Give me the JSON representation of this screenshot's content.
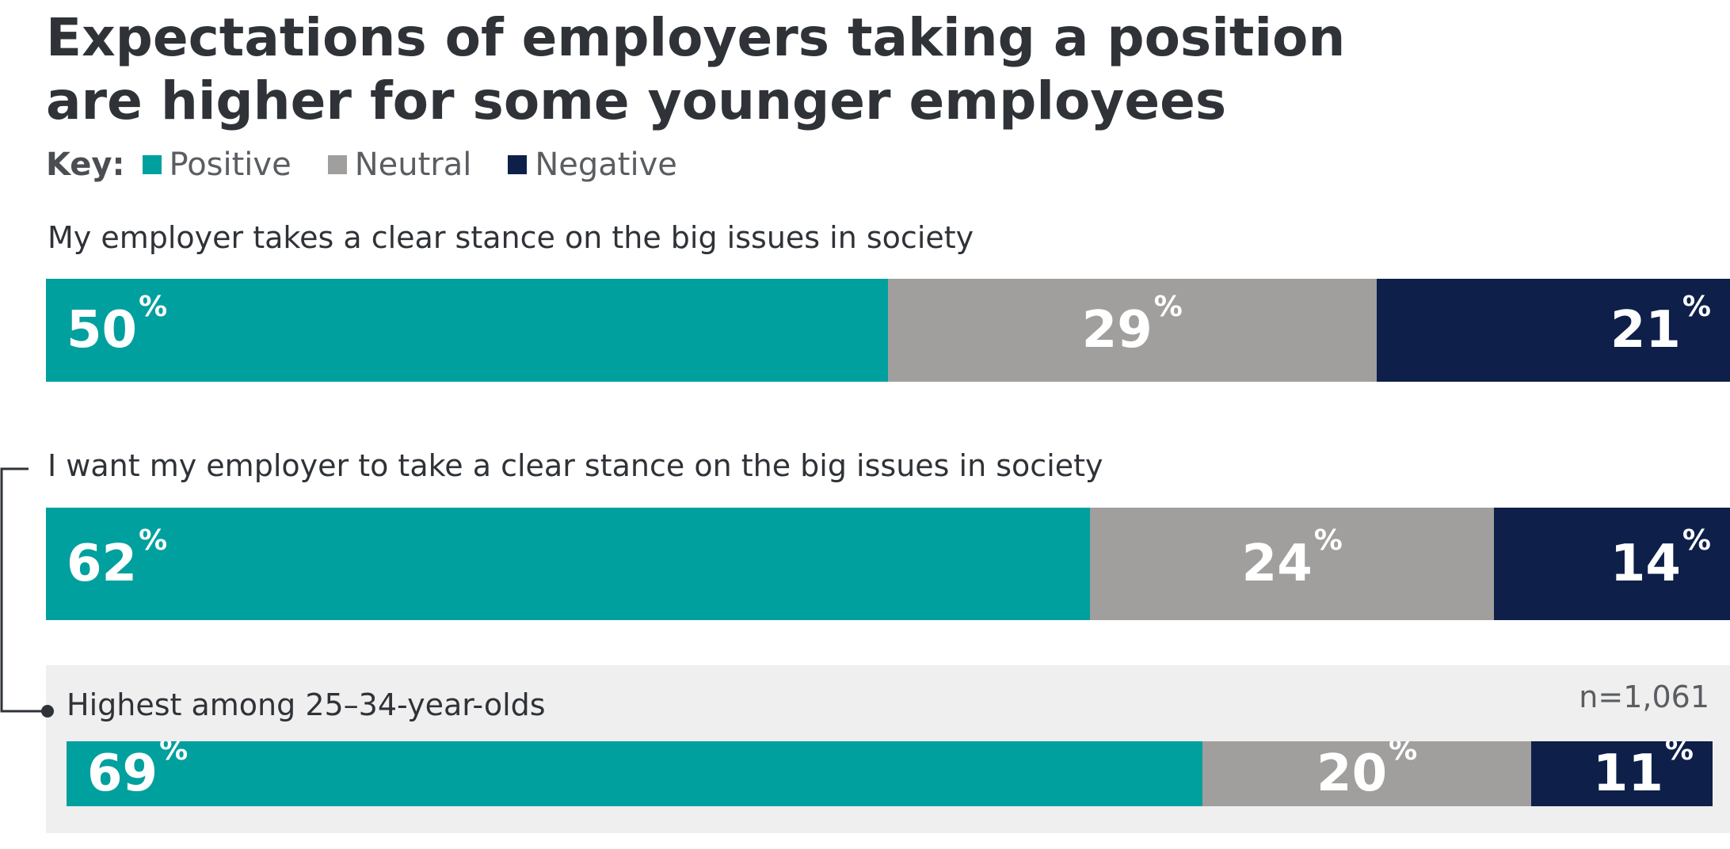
{
  "title_line1": "Expectations of employers taking a position",
  "title_line2": "are higher for some younger employees",
  "key": {
    "label": "Key:",
    "items": [
      {
        "name": "Positive",
        "color": "#00a09f"
      },
      {
        "name": "Neutral",
        "color": "#a09f9d"
      },
      {
        "name": "Negative",
        "color": "#0e1f4a"
      }
    ]
  },
  "n_label": "n=1,061",
  "chart_data": {
    "type": "bar",
    "stacked": true,
    "orientation": "horizontal",
    "unit": "%",
    "series_names": [
      "Positive",
      "Neutral",
      "Negative"
    ],
    "colors": [
      "#00a09f",
      "#a09f9d",
      "#0e1f4a"
    ],
    "rows": [
      {
        "label": "My employer takes a clear stance on the big issues in society",
        "values": [
          50,
          29,
          21
        ]
      },
      {
        "label": "I want my employer to take a clear stance on the big issues in society",
        "values": [
          62,
          24,
          14
        ]
      },
      {
        "label": "Highest among 25–34-year-olds",
        "values": [
          69,
          20,
          11
        ]
      }
    ]
  }
}
